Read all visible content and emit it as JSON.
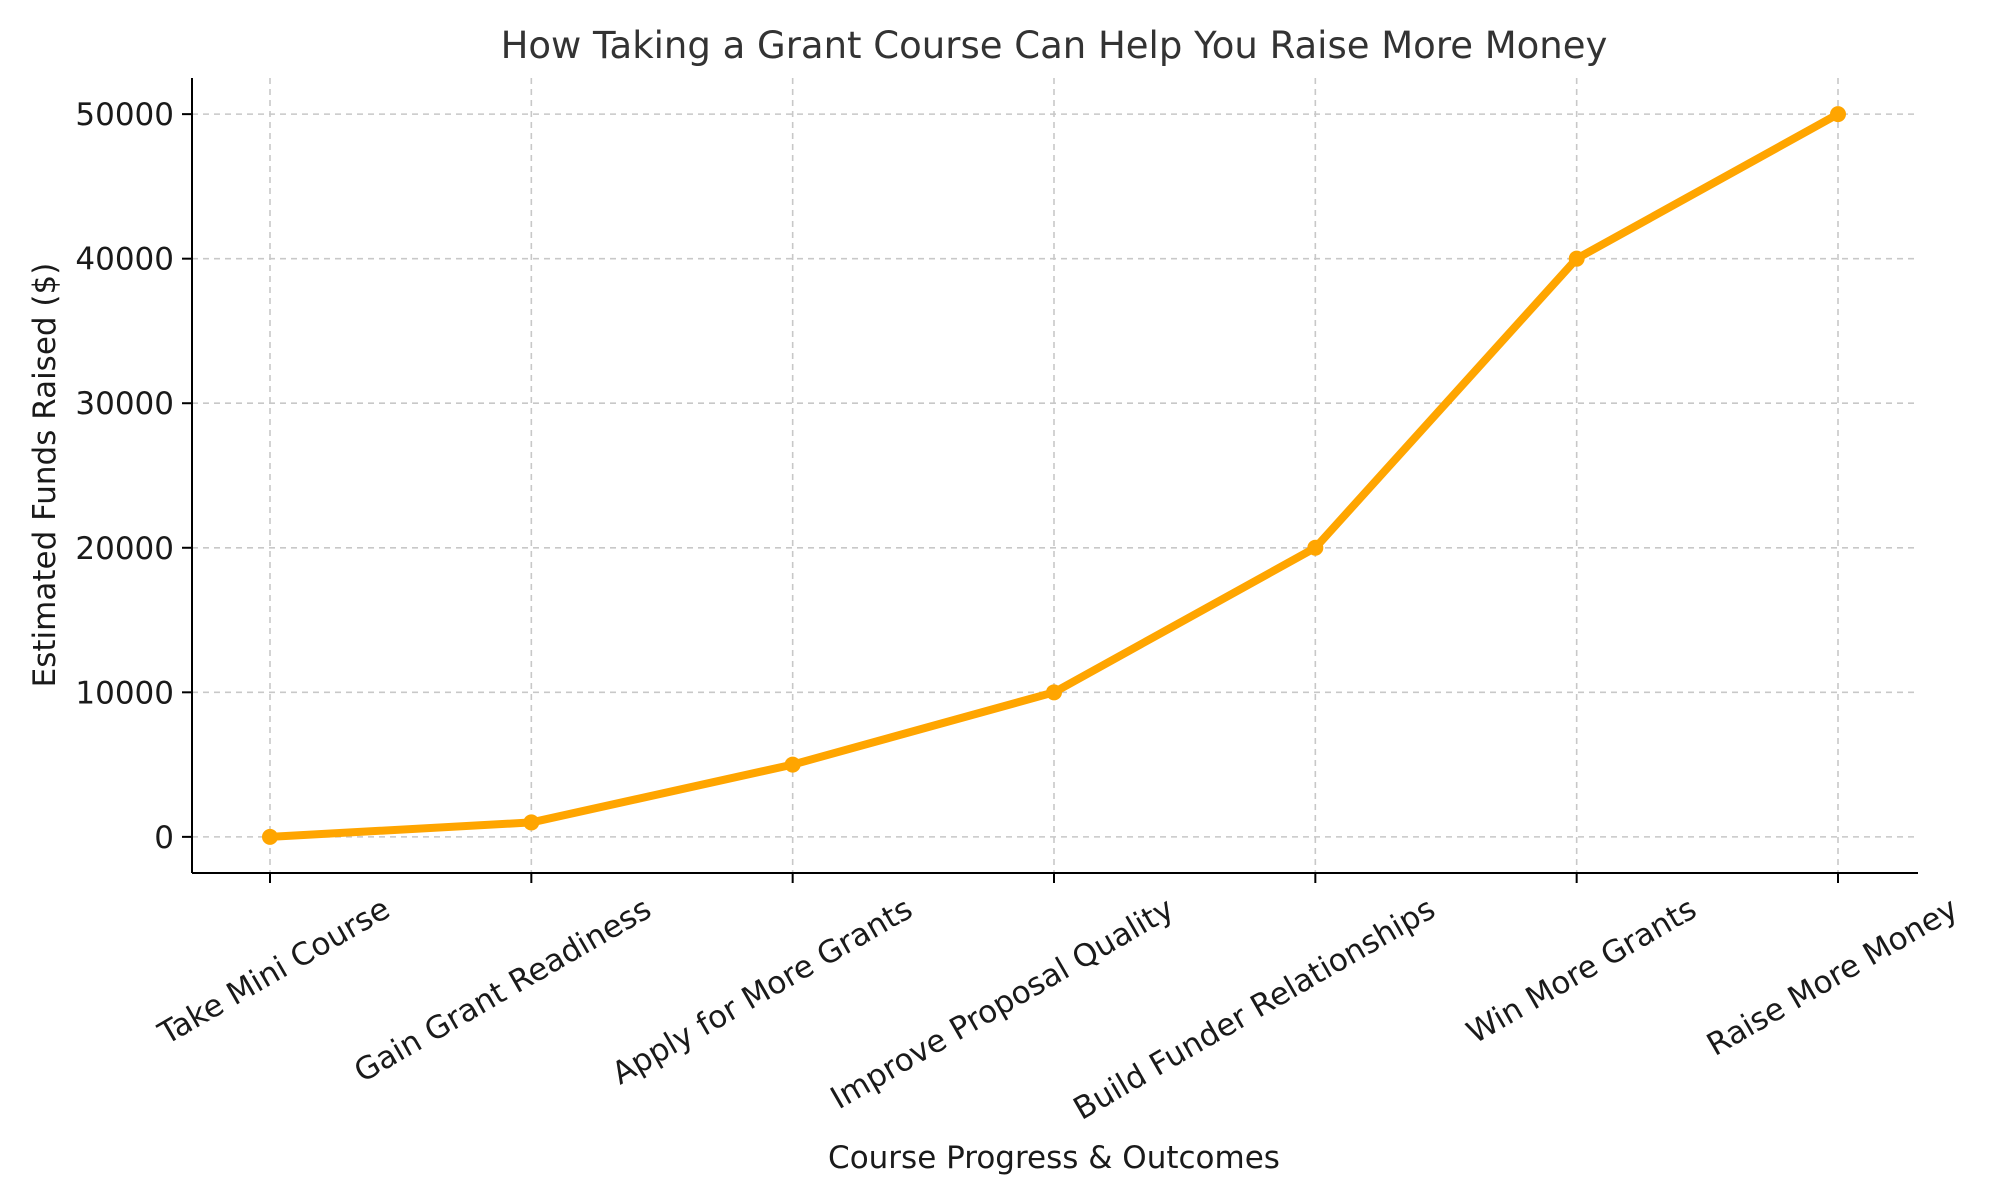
{
  "chart_data": {
    "type": "line",
    "title": "How Taking a Grant Course Can Help You Raise More Money",
    "xlabel": "Course Progress & Outcomes",
    "ylabel": "Estimated Funds Raised ($)",
    "categories": [
      "Take Mini Course",
      "Gain Grant Readiness",
      "Apply for More Grants",
      "Improve Proposal Quality",
      "Build Funder Relationships",
      "Win More Grants",
      "Raise More Money"
    ],
    "series": [
      {
        "values": [
          0,
          1000,
          5000,
          10000,
          20000,
          40000,
          50000
        ],
        "color": "#FFA500"
      }
    ],
    "yticks": [
      0,
      10000,
      20000,
      30000,
      40000,
      50000
    ],
    "ylim": [
      -2500,
      52500
    ],
    "grid": true,
    "x_tick_rotation_deg": 30
  }
}
